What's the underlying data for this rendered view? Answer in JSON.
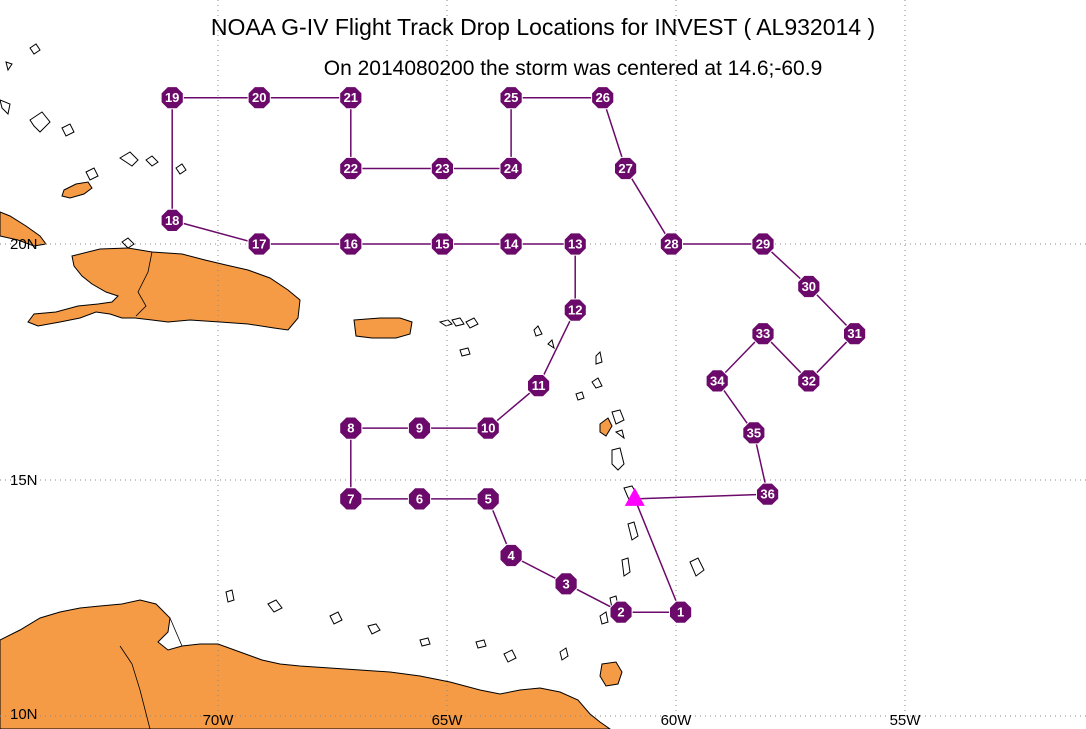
{
  "title": "NOAA G-IV Flight Track Drop Locations for INVEST ( AL932014 )",
  "subtitle": "On 2014080200 the storm was centered at 14.6;-60.9",
  "colors": {
    "land": "#f59a45",
    "coast": "#000000",
    "track": "#6b0a6b",
    "station_fill": "#6b0a6b",
    "storm_marker": "#ff00ff",
    "grid": "#888888"
  },
  "axes": {
    "lon_labels": [
      {
        "lon": -70,
        "text": "70W"
      },
      {
        "lon": -65,
        "text": "65W"
      },
      {
        "lon": -60,
        "text": "60W"
      },
      {
        "lon": -55,
        "text": "55W"
      }
    ],
    "lat_labels": [
      {
        "lat": 20,
        "text": "20N"
      },
      {
        "lat": 15,
        "text": "15N"
      },
      {
        "lat": 10,
        "text": "10N"
      }
    ]
  },
  "storm_center": {
    "lat": 14.6,
    "lon": -60.9,
    "icon": "triangle-icon"
  },
  "drop_stations": [
    {
      "id": "1",
      "lat": 12.2,
      "lon": -59.9
    },
    {
      "id": "2",
      "lat": 12.2,
      "lon": -61.2
    },
    {
      "id": "3",
      "lat": 12.8,
      "lon": -62.4
    },
    {
      "id": "4",
      "lat": 13.4,
      "lon": -63.6
    },
    {
      "id": "5",
      "lat": 14.6,
      "lon": -64.1
    },
    {
      "id": "6",
      "lat": 14.6,
      "lon": -65.6
    },
    {
      "id": "7",
      "lat": 14.6,
      "lon": -67.1
    },
    {
      "id": "8",
      "lat": 16.1,
      "lon": -67.1
    },
    {
      "id": "9",
      "lat": 16.1,
      "lon": -65.6
    },
    {
      "id": "10",
      "lat": 16.1,
      "lon": -64.1
    },
    {
      "id": "11",
      "lat": 17.0,
      "lon": -63.0
    },
    {
      "id": "12",
      "lat": 18.6,
      "lon": -62.2
    },
    {
      "id": "13",
      "lat": 20.0,
      "lon": -62.2
    },
    {
      "id": "14",
      "lat": 20.0,
      "lon": -63.6
    },
    {
      "id": "15",
      "lat": 20.0,
      "lon": -65.1
    },
    {
      "id": "16",
      "lat": 20.0,
      "lon": -67.1
    },
    {
      "id": "17",
      "lat": 20.0,
      "lon": -69.1
    },
    {
      "id": "18",
      "lat": 20.5,
      "lon": -71.0
    },
    {
      "id": "19",
      "lat": 23.1,
      "lon": -71.0
    },
    {
      "id": "20",
      "lat": 23.1,
      "lon": -69.1
    },
    {
      "id": "21",
      "lat": 23.1,
      "lon": -67.1
    },
    {
      "id": "22",
      "lat": 21.6,
      "lon": -67.1
    },
    {
      "id": "23",
      "lat": 21.6,
      "lon": -65.1
    },
    {
      "id": "24",
      "lat": 21.6,
      "lon": -63.6
    },
    {
      "id": "25",
      "lat": 23.1,
      "lon": -63.6
    },
    {
      "id": "26",
      "lat": 23.1,
      "lon": -61.6
    },
    {
      "id": "27",
      "lat": 21.6,
      "lon": -61.1
    },
    {
      "id": "28",
      "lat": 20.0,
      "lon": -60.1
    },
    {
      "id": "29",
      "lat": 20.0,
      "lon": -58.1
    },
    {
      "id": "30",
      "lat": 19.1,
      "lon": -57.1
    },
    {
      "id": "31",
      "lat": 18.1,
      "lon": -56.1
    },
    {
      "id": "32",
      "lat": 17.1,
      "lon": -57.1
    },
    {
      "id": "33",
      "lat": 18.1,
      "lon": -58.1
    },
    {
      "id": "34",
      "lat": 17.1,
      "lon": -59.1
    },
    {
      "id": "35",
      "lat": 16.0,
      "lon": -58.3
    },
    {
      "id": "36",
      "lat": 14.7,
      "lon": -58.0
    }
  ],
  "track_order": [
    "storm",
    "1",
    "2",
    "3",
    "4",
    "5",
    "6",
    "7",
    "8",
    "9",
    "10",
    "11",
    "12",
    "13",
    "14",
    "15",
    "16",
    "17",
    "18",
    "19",
    "20",
    "21",
    "22",
    "23",
    "24",
    "25",
    "26",
    "27",
    "28",
    "29",
    "30",
    "31",
    "32",
    "33",
    "34",
    "35",
    "36",
    "storm"
  ]
}
